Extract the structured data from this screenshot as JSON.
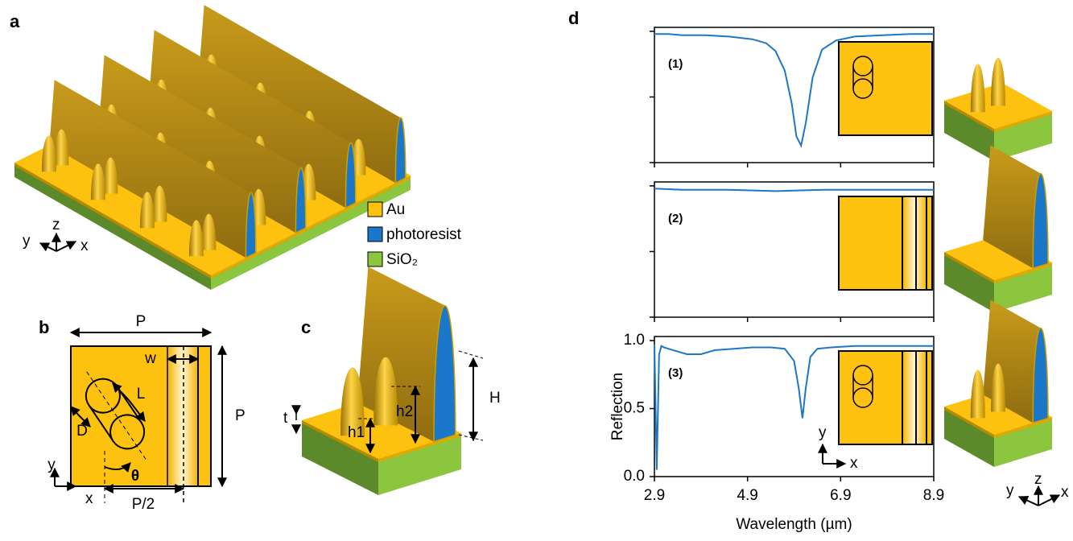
{
  "panels": {
    "a": "a",
    "b": "b",
    "c": "c",
    "d": "d"
  },
  "legend": [
    {
      "name": "Au",
      "color": "#fdc20f"
    },
    {
      "name": "photoresist",
      "color": "#1b77c9"
    },
    {
      "name": "SiO₂",
      "color": "#8cc63f"
    }
  ],
  "panel_a": {
    "axes": [
      "z",
      "y",
      "x"
    ]
  },
  "panel_b": {
    "labels": [
      "P",
      "P",
      "w",
      "L",
      "D",
      "θ",
      "P/2"
    ],
    "axes": [
      "y",
      "x"
    ]
  },
  "panel_c": {
    "labels": [
      "t",
      "h1",
      "h2",
      "H"
    ]
  },
  "panel_d": {
    "axes": [
      "z",
      "y",
      "x"
    ]
  },
  "chart_data": [
    {
      "type": "line",
      "annotation": "(1)",
      "x": [
        2.9,
        3.2,
        3.5,
        4.0,
        4.5,
        5.0,
        5.3,
        5.5,
        5.7,
        5.85,
        5.95,
        6.05,
        6.15,
        6.3,
        6.5,
        6.8,
        7.2,
        7.8,
        8.4,
        8.9
      ],
      "series": [
        {
          "color": "#1f77c4",
          "values": [
            0.98,
            0.98,
            0.97,
            0.97,
            0.96,
            0.94,
            0.91,
            0.85,
            0.7,
            0.45,
            0.2,
            0.13,
            0.3,
            0.65,
            0.86,
            0.93,
            0.96,
            0.97,
            0.98,
            0.98
          ]
        }
      ],
      "xlim": [
        2.9,
        8.9
      ],
      "xticks": [
        2.9,
        4.9,
        6.9,
        8.9
      ],
      "ylim": [
        0,
        1.03
      ],
      "yticks": [
        0,
        0.5,
        1
      ],
      "tick_labels": false
    },
    {
      "type": "line",
      "annotation": "(2)",
      "x": [
        2.9,
        3.5,
        4.5,
        5.5,
        6.5,
        7.5,
        8.5,
        8.9
      ],
      "series": [
        {
          "color": "#1f77c4",
          "values": [
            0.98,
            0.97,
            0.97,
            0.96,
            0.97,
            0.97,
            0.97,
            0.97
          ]
        }
      ],
      "xlim": [
        2.9,
        8.9
      ],
      "xticks": [
        2.9,
        4.9,
        6.9,
        8.9
      ],
      "ylim": [
        0,
        1.03
      ],
      "yticks": [
        0,
        0.5,
        1
      ],
      "tick_labels": false
    },
    {
      "type": "line",
      "annotation": "(3)",
      "xlabel": "Wavelength (µm)",
      "ylabel": "Reflection",
      "inset_axes": [
        "y",
        "x"
      ],
      "x": [
        2.9,
        2.95,
        3.0,
        3.05,
        3.1,
        3.3,
        3.6,
        3.9,
        4.2,
        4.6,
        5.0,
        5.4,
        5.7,
        5.9,
        6.0,
        6.08,
        6.15,
        6.25,
        6.4,
        6.7,
        7.2,
        8.0,
        8.9
      ],
      "series": [
        {
          "color": "#1f77c4",
          "values": [
            0.97,
            0.05,
            0.9,
            0.96,
            0.95,
            0.93,
            0.9,
            0.9,
            0.93,
            0.94,
            0.95,
            0.95,
            0.94,
            0.85,
            0.65,
            0.43,
            0.65,
            0.88,
            0.94,
            0.95,
            0.96,
            0.96,
            0.96
          ]
        }
      ],
      "xlim": [
        2.9,
        8.9
      ],
      "xticks": [
        2.9,
        4.9,
        6.9,
        8.9
      ],
      "ylim": [
        0,
        1.03
      ],
      "yticks": [
        {
          "value": 0,
          "label": "0.0"
        },
        {
          "value": 0.5,
          "label": "0.5"
        },
        {
          "value": 1,
          "label": "1.0"
        }
      ],
      "tick_labels": true
    }
  ]
}
